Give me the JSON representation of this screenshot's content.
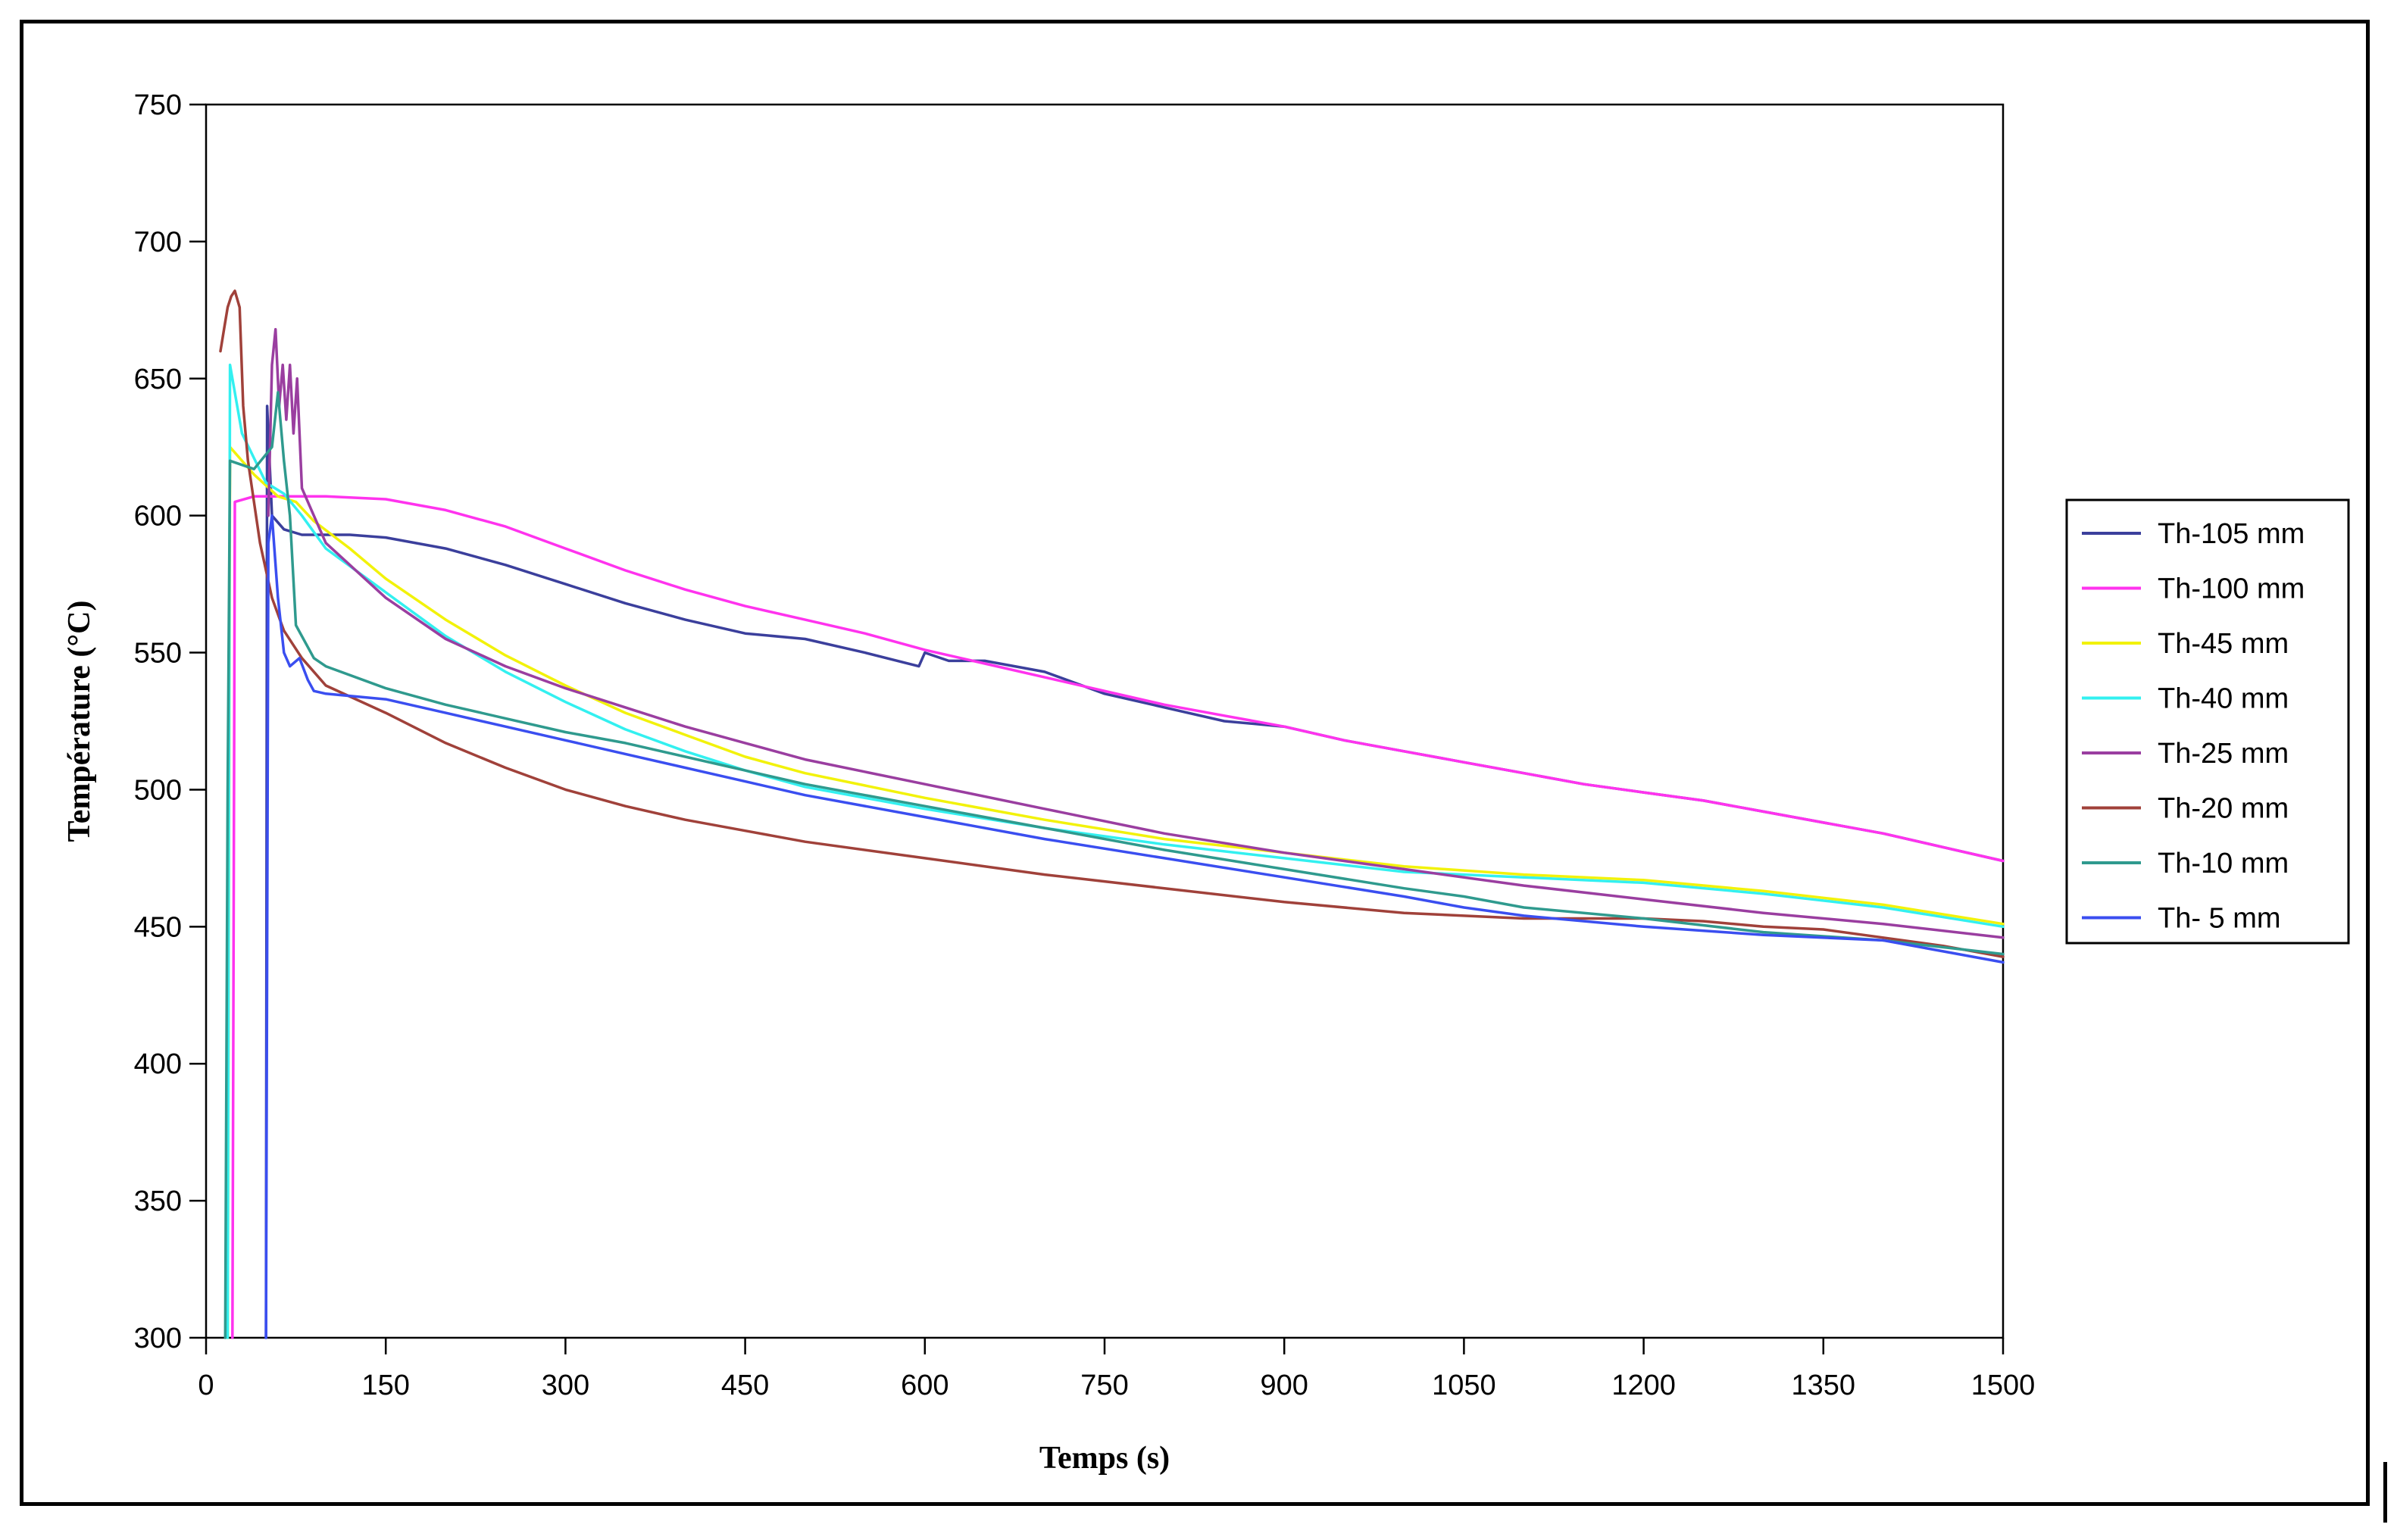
{
  "chart_data": {
    "type": "line",
    "title": "",
    "xlabel": "Temps (s)",
    "ylabel": "Température (°C)",
    "xlim": [
      0,
      1500
    ],
    "ylim": [
      300,
      750
    ],
    "xticks": [
      0,
      150,
      300,
      450,
      600,
      750,
      900,
      1050,
      1200,
      1350,
      1500
    ],
    "yticks": [
      300,
      350,
      400,
      450,
      500,
      550,
      600,
      650,
      700,
      750
    ],
    "grid": false,
    "legend_position": "right",
    "series": [
      {
        "name": "Th-105 mm",
        "color": "#3b3f9c",
        "points": [
          [
            50,
            300
          ],
          [
            51,
            640
          ],
          [
            55,
            600
          ],
          [
            65,
            595
          ],
          [
            80,
            593
          ],
          [
            120,
            593
          ],
          [
            150,
            592
          ],
          [
            200,
            588
          ],
          [
            250,
            582
          ],
          [
            300,
            575
          ],
          [
            350,
            568
          ],
          [
            400,
            562
          ],
          [
            450,
            557
          ],
          [
            500,
            555
          ],
          [
            550,
            550
          ],
          [
            595,
            545
          ],
          [
            600,
            550
          ],
          [
            620,
            547
          ],
          [
            650,
            547
          ],
          [
            700,
            543
          ],
          [
            750,
            535
          ],
          [
            800,
            530
          ],
          [
            850,
            525
          ],
          [
            900,
            523
          ],
          [
            950,
            518
          ],
          [
            1000,
            514
          ],
          [
            1050,
            510
          ],
          [
            1100,
            506
          ],
          [
            1150,
            502
          ],
          [
            1200,
            499
          ],
          [
            1250,
            496
          ],
          [
            1300,
            492
          ],
          [
            1350,
            488
          ],
          [
            1400,
            484
          ],
          [
            1450,
            479
          ],
          [
            1500,
            474
          ]
        ]
      },
      {
        "name": "Th-100 mm",
        "color": "#ff33ee",
        "points": [
          [
            22,
            300
          ],
          [
            24,
            605
          ],
          [
            40,
            607
          ],
          [
            100,
            607
          ],
          [
            150,
            606
          ],
          [
            200,
            602
          ],
          [
            250,
            596
          ],
          [
            300,
            588
          ],
          [
            350,
            580
          ],
          [
            400,
            573
          ],
          [
            450,
            567
          ],
          [
            500,
            562
          ],
          [
            550,
            557
          ],
          [
            600,
            551
          ],
          [
            650,
            546
          ],
          [
            700,
            541
          ],
          [
            750,
            536
          ],
          [
            800,
            531
          ],
          [
            850,
            527
          ],
          [
            900,
            523
          ],
          [
            950,
            518
          ],
          [
            1000,
            514
          ],
          [
            1050,
            510
          ],
          [
            1100,
            506
          ],
          [
            1150,
            502
          ],
          [
            1200,
            499
          ],
          [
            1250,
            496
          ],
          [
            1300,
            492
          ],
          [
            1350,
            488
          ],
          [
            1400,
            484
          ],
          [
            1450,
            479
          ],
          [
            1500,
            474
          ]
        ]
      },
      {
        "name": "Th-45 mm",
        "color": "#f2f20a",
        "points": [
          [
            18,
            300
          ],
          [
            20,
            625
          ],
          [
            40,
            615
          ],
          [
            60,
            607
          ],
          [
            75,
            605
          ],
          [
            90,
            598
          ],
          [
            120,
            588
          ],
          [
            150,
            577
          ],
          [
            200,
            562
          ],
          [
            250,
            549
          ],
          [
            300,
            538
          ],
          [
            350,
            528
          ],
          [
            400,
            520
          ],
          [
            450,
            512
          ],
          [
            500,
            506
          ],
          [
            600,
            497
          ],
          [
            700,
            489
          ],
          [
            800,
            482
          ],
          [
            900,
            477
          ],
          [
            1000,
            472
          ],
          [
            1100,
            469
          ],
          [
            1200,
            467
          ],
          [
            1300,
            463
          ],
          [
            1400,
            458
          ],
          [
            1500,
            451
          ]
        ]
      },
      {
        "name": "Th-40 mm",
        "color": "#33f0f0",
        "points": [
          [
            18,
            300
          ],
          [
            20,
            655
          ],
          [
            30,
            630
          ],
          [
            50,
            612
          ],
          [
            65,
            608
          ],
          [
            80,
            600
          ],
          [
            100,
            588
          ],
          [
            150,
            572
          ],
          [
            200,
            556
          ],
          [
            250,
            543
          ],
          [
            300,
            532
          ],
          [
            350,
            522
          ],
          [
            400,
            514
          ],
          [
            450,
            507
          ],
          [
            500,
            501
          ],
          [
            600,
            493
          ],
          [
            700,
            486
          ],
          [
            800,
            480
          ],
          [
            900,
            475
          ],
          [
            1000,
            470
          ],
          [
            1100,
            468
          ],
          [
            1200,
            466
          ],
          [
            1300,
            462
          ],
          [
            1400,
            457
          ],
          [
            1500,
            450
          ]
        ]
      },
      {
        "name": "Th-25 mm",
        "color": "#9a3ea0",
        "points": [
          [
            52,
            600
          ],
          [
            55,
            655
          ],
          [
            58,
            668
          ],
          [
            61,
            640
          ],
          [
            64,
            655
          ],
          [
            67,
            635
          ],
          [
            70,
            655
          ],
          [
            73,
            630
          ],
          [
            76,
            650
          ],
          [
            80,
            610
          ],
          [
            90,
            600
          ],
          [
            100,
            590
          ],
          [
            150,
            570
          ],
          [
            200,
            555
          ],
          [
            250,
            545
          ],
          [
            300,
            537
          ],
          [
            350,
            530
          ],
          [
            400,
            523
          ],
          [
            450,
            517
          ],
          [
            500,
            511
          ],
          [
            600,
            502
          ],
          [
            700,
            493
          ],
          [
            800,
            484
          ],
          [
            900,
            477
          ],
          [
            1000,
            471
          ],
          [
            1100,
            465
          ],
          [
            1200,
            460
          ],
          [
            1300,
            455
          ],
          [
            1400,
            451
          ],
          [
            1500,
            446
          ]
        ]
      },
      {
        "name": "Th-20 mm",
        "color": "#a0413a",
        "points": [
          [
            12,
            660
          ],
          [
            15,
            668
          ],
          [
            18,
            676
          ],
          [
            21,
            680
          ],
          [
            24,
            682
          ],
          [
            28,
            676
          ],
          [
            31,
            640
          ],
          [
            35,
            620
          ],
          [
            45,
            590
          ],
          [
            55,
            570
          ],
          [
            65,
            558
          ],
          [
            80,
            548
          ],
          [
            100,
            538
          ],
          [
            150,
            528
          ],
          [
            200,
            517
          ],
          [
            250,
            508
          ],
          [
            300,
            500
          ],
          [
            350,
            494
          ],
          [
            400,
            489
          ],
          [
            450,
            485
          ],
          [
            500,
            481
          ],
          [
            600,
            475
          ],
          [
            700,
            469
          ],
          [
            800,
            464
          ],
          [
            900,
            459
          ],
          [
            1000,
            455
          ],
          [
            1050,
            454
          ],
          [
            1100,
            453
          ],
          [
            1150,
            453
          ],
          [
            1200,
            453
          ],
          [
            1250,
            452
          ],
          [
            1300,
            450
          ],
          [
            1350,
            449
          ],
          [
            1400,
            446
          ],
          [
            1450,
            443
          ],
          [
            1500,
            439
          ]
        ]
      },
      {
        "name": "Th-10 mm",
        "color": "#2f9a8e",
        "points": [
          [
            16,
            300
          ],
          [
            18,
            500
          ],
          [
            20,
            620
          ],
          [
            40,
            617
          ],
          [
            55,
            625
          ],
          [
            60,
            645
          ],
          [
            65,
            620
          ],
          [
            70,
            600
          ],
          [
            75,
            560
          ],
          [
            90,
            548
          ],
          [
            100,
            545
          ],
          [
            150,
            537
          ],
          [
            200,
            531
          ],
          [
            250,
            526
          ],
          [
            300,
            521
          ],
          [
            350,
            517
          ],
          [
            400,
            512
          ],
          [
            450,
            507
          ],
          [
            500,
            502
          ],
          [
            600,
            494
          ],
          [
            700,
            486
          ],
          [
            800,
            478
          ],
          [
            900,
            471
          ],
          [
            1000,
            464
          ],
          [
            1050,
            461
          ],
          [
            1100,
            457
          ],
          [
            1200,
            453
          ],
          [
            1300,
            448
          ],
          [
            1400,
            445
          ],
          [
            1500,
            440
          ]
        ]
      },
      {
        "name": "Th- 5 mm",
        "color": "#3a4ef0",
        "points": [
          [
            50,
            300
          ],
          [
            52,
            590
          ],
          [
            55,
            600
          ],
          [
            60,
            570
          ],
          [
            65,
            550
          ],
          [
            70,
            545
          ],
          [
            78,
            548
          ],
          [
            85,
            540
          ],
          [
            90,
            536
          ],
          [
            100,
            535
          ],
          [
            150,
            533
          ],
          [
            200,
            528
          ],
          [
            250,
            523
          ],
          [
            300,
            518
          ],
          [
            350,
            513
          ],
          [
            400,
            508
          ],
          [
            450,
            503
          ],
          [
            500,
            498
          ],
          [
            600,
            490
          ],
          [
            700,
            482
          ],
          [
            800,
            475
          ],
          [
            900,
            468
          ],
          [
            1000,
            461
          ],
          [
            1050,
            457
          ],
          [
            1100,
            454
          ],
          [
            1200,
            450
          ],
          [
            1300,
            447
          ],
          [
            1400,
            445
          ],
          [
            1500,
            437
          ]
        ]
      }
    ]
  }
}
